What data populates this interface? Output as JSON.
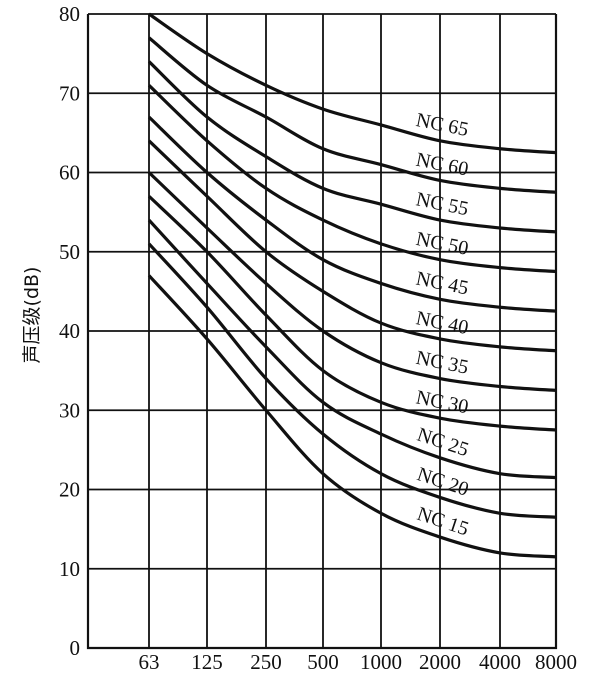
{
  "chart_data": {
    "type": "line",
    "title": "",
    "xlabel": "",
    "ylabel": "声压级(dB)",
    "x_categories": [
      "63",
      "125",
      "250",
      "500",
      "1000",
      "2000",
      "4000",
      "8000"
    ],
    "ylim": [
      0,
      80
    ],
    "y_ticks": [
      0,
      10,
      20,
      30,
      40,
      50,
      60,
      70,
      80
    ],
    "grid": true,
    "series": [
      {
        "name": "NC 65",
        "values": [
          80,
          75,
          71,
          68,
          66,
          64,
          63,
          62.5
        ]
      },
      {
        "name": "NC 60",
        "values": [
          77,
          71,
          67,
          63,
          61,
          59,
          58,
          57.5
        ]
      },
      {
        "name": "NC 55",
        "values": [
          74,
          67,
          62,
          58,
          56,
          54,
          53,
          52.5
        ]
      },
      {
        "name": "NC 50",
        "values": [
          71,
          64,
          58,
          54,
          51,
          49,
          48,
          47.5
        ]
      },
      {
        "name": "NC 45",
        "values": [
          67,
          60,
          54,
          49,
          46,
          44,
          43,
          42.5
        ]
      },
      {
        "name": "NC 40",
        "values": [
          64,
          57,
          50,
          45,
          41,
          39,
          38,
          37.5
        ]
      },
      {
        "name": "NC 35",
        "values": [
          60,
          53,
          46,
          40,
          36,
          34,
          33,
          32.5
        ]
      },
      {
        "name": "NC 30",
        "values": [
          57,
          50,
          42,
          35,
          31,
          29,
          28,
          27.5
        ]
      },
      {
        "name": "NC 25",
        "values": [
          54,
          46,
          38,
          31,
          27,
          24,
          22,
          21.5
        ]
      },
      {
        "name": "NC 20",
        "values": [
          51,
          43,
          34,
          27,
          22,
          19,
          17,
          16.5
        ]
      },
      {
        "name": "NC 15",
        "values": [
          47,
          39,
          30,
          22,
          17,
          14,
          12,
          11.5
        ]
      }
    ]
  }
}
